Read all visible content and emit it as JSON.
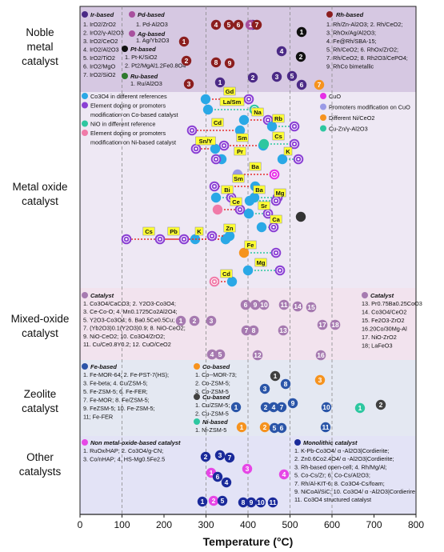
{
  "chart_data": {
    "type": "scatter",
    "xlabel": "Temperature (°C)",
    "xlim": [
      0,
      800
    ],
    "xticks": [
      0,
      100,
      200,
      300,
      400,
      500,
      600,
      700,
      800
    ],
    "grid": "vertical dashed at 100, 300, 400, 500, 600",
    "bands": [
      {
        "name": "noble",
        "label": [
          "Noble",
          "metal",
          "catalyst"
        ],
        "color": "#d6c8e2"
      },
      {
        "name": "metaloxide",
        "label": [
          "Metal oxide",
          "catalyst"
        ],
        "color": "#eee8f4"
      },
      {
        "name": "mixed",
        "label": [
          "Mixed-oxide",
          "catalyst"
        ],
        "color": "#f2e3ee"
      },
      {
        "name": "zeolite",
        "label": [
          "Zeolite",
          "catalyst"
        ],
        "color": "#e4e8f2"
      },
      {
        "name": "other",
        "label": [
          "Other",
          "catalysts"
        ],
        "color": "#e3e3f6"
      }
    ],
    "colors": {
      "ir": "#4b2a86",
      "pd": "#a8509e",
      "pt": "#111111",
      "ru": "#2e7a2e",
      "rh": "#8b1e1e",
      "co3o4": "#2aa8e6",
      "co_dopant": "#8a3fd4",
      "nio": "#2dc7a0",
      "ni_dopant": "#f07aa8",
      "cuo": "#e62ee6",
      "cuo_prom": "#9a9ae6",
      "ni_ceo2": "#f6931e",
      "cuzn": "#2dc7a0",
      "mixed": "#a67ab0",
      "fe": "#2a55a8",
      "co_z": "#f6931e",
      "cu_z": "#404040",
      "ni_z": "#2dc7a0",
      "nonmetal": "#e646e6",
      "mono": "#1a2a9a"
    },
    "legends": {
      "noble_ir_title": "Ir-based",
      "noble_ir": [
        "1. IrO2/ZrO2",
        "2. IrO2/γ-Al2O3",
        "3. IrO2/CeO2",
        "4. IrO2/Al2O3",
        "5. IrO2/TiO2",
        "6. IrO2/MgO",
        "7. IrO2/SiO2"
      ],
      "noble_pd_title": "Pd-based",
      "noble_pd": [
        "1. Pd-Al2O3"
      ],
      "noble_ag_title": "Ag-based",
      "noble_ag": [
        "1. Ag/Yb2O3"
      ],
      "noble_pt_title": "Pt-based",
      "noble_pt": [
        "1. Pt-K/SiO2",
        "2. Pt2/MgAl1.2Fe0.8O4"
      ],
      "noble_ru_title": "Ru-based",
      "noble_ru": [
        "1. Ru/Al2O3"
      ],
      "noble_rh_title": "Rh-based",
      "noble_rh": [
        "1. Rh/Zn-Al2O3;   2. Rh/CeO2;",
        "3. RhOx/Ag/Al2O3;",
        "4. Fe@Rh/SBA-15;",
        "5. Rh/CeO2;   6. RhOx/ZrO2;",
        "7. Rh/CeO2;   8. Rh2O3/CePO4;",
        "9. RhCo bimetallic"
      ],
      "mo_items": [
        "Co3O4 in different references",
        "Element doping or promoters",
        "modification on Co-based catalyst",
        "NiO in different reference",
        "Element doping or promoters",
        "modification on Ni-based catalyst"
      ],
      "mo_right": [
        "CuO",
        "Promoters modification on CuO",
        "Different Ni/CeO2",
        "Cu-Zn/γ-Al2O3"
      ],
      "mixed_title": "Catalyst",
      "mixed_left": [
        "1. Co3O4/CaCO3;  2. Y2O3-Co3O4;",
        "3. Ce-Co-O;  4. Mn0.1725Co2Al2O4;",
        "5. Y2O3-Co3O4;  6. Ba0.5Ce0.5Cu;",
        "7. (Yb2O3)0.1(Y2O3)0.9;  8. NiO-CeO2;",
        "9. NiO-CeO2;  10. Co3O4/ZrO2;",
        "11. Cu/Ce0.8Y0.2;  12. CuO/CeO2"
      ],
      "mixed_right_title": "Catalyst",
      "mixed_right": [
        "13. Pr0.75Ba0.25CoO3",
        "14. Co3O4/CeO2",
        "15. Fe2O3-ZrO2",
        "16.20Co/30Mg-Al",
        "17. NiO-ZrO2",
        "18; LaFeO3"
      ],
      "z_fe_title": "Fe-based",
      "z_fe": [
        "1. Fe-MOR-64;  2. Fe-PST-7(HS);",
        "3. Fe-beta;  4. Cu/ZSM-5;",
        "5. Fe-ZSM-5;  6. Fe-FER;",
        "7. Fe-MOR;  8. Fe/ZSM-5;",
        "9. FeZSM-5;  10. Fe-ZSM-5;",
        "11; Fe-FER"
      ],
      "z_co_title": "Co-based",
      "z_co": [
        "1. Co--MOR-73;",
        "2. Co-ZSM-5;",
        "3. Co-ZSM-5"
      ],
      "z_cu_title": "Cu-based",
      "z_cu": [
        "1. Cu/ZSM-5;",
        "2. Cu-ZSM-5"
      ],
      "z_ni_title": "Ni-based",
      "z_ni": [
        "1. Ni-ZSM-5"
      ],
      "o_nm_title": "Non metal-oxide-based catalyst",
      "o_nm": [
        "1. RuOx/HAP;  2. Co3O4/g-CN;",
        "3. Co/nHAP;   4. HS-Mg0.5Fe2.5"
      ],
      "o_mono_title": "Monolithic catalyst",
      "o_mono": [
        "1. K-Pb-Co3O4/ α -Al2O3|Cordierite;",
        "2. Zn0.6Co2.4O4/ α -Al2O3|Cordierite;",
        "3. Rh-based open-cell;  4. Rh/Mg/Al;",
        "5. Co-Cs/Zr;  6. Co-Cs/Al2O3;",
        "7. Rh/Al-KIT-6;  8. Co3O4-Cs/foam;",
        "9. NiCoAl/SiC;  10. Co3O4/ α -Al2O3|Cordierire",
        "11. Co3O4 structured catalyst"
      ]
    },
    "noble_points": [
      {
        "g": "ir",
        "n": "1",
        "x": 270
      },
      {
        "g": "ir",
        "n": "2",
        "x": 320
      },
      {
        "g": "ir",
        "n": "3",
        "x": 370
      },
      {
        "g": "ir",
        "n": "4",
        "x": 445
      },
      {
        "g": "ir",
        "n": "5",
        "x": 405
      },
      {
        "g": "ir",
        "n": "6",
        "x": 430
      },
      {
        "g": "ir",
        "n": "7",
        "x": 560
      },
      {
        "g": "pd",
        "n": "1",
        "x": 400
      },
      {
        "g": "pt",
        "n": "1",
        "x": 520
      },
      {
        "g": "pt",
        "n": "2",
        "x": 520
      },
      {
        "g": "rh",
        "n": "1",
        "x": 240
      },
      {
        "g": "rh",
        "n": "2",
        "x": 250
      },
      {
        "g": "rh",
        "n": "3",
        "x": 255
      },
      {
        "g": "rh",
        "n": "4",
        "x": 285
      },
      {
        "g": "rh",
        "n": "5",
        "x": 325
      },
      {
        "g": "rh",
        "n": "6",
        "x": 345
      },
      {
        "g": "rh",
        "n": "7",
        "x": 362
      },
      {
        "g": "rh",
        "n": "8",
        "x": 315
      },
      {
        "g": "rh",
        "n": "9",
        "x": 345
      },
      {
        "g": "ni_ceo2",
        "n": "7",
        "x": 595
      }
    ],
    "metal_oxide_points": [
      {
        "from": 490,
        "to": 400,
        "tag": "Gd"
      },
      {
        "from": 410,
        "to": 410,
        "tag": "La/Sm"
      },
      {
        "from": 480,
        "to": 400,
        "tag": "Na"
      },
      {
        "from": 360,
        "to": 260,
        "tag": "Cd"
      },
      {
        "from": 500,
        "to": 520,
        "tag": "Rb"
      },
      {
        "from": 410,
        "to": 330,
        "tag": "Sm"
      },
      {
        "from": 320,
        "to": 250,
        "tag": "Sn/Y"
      },
      {
        "from": 470,
        "to": 560,
        "tag": "Cs"
      },
      {
        "from": 390,
        "to": 380,
        "tag": "Pr"
      },
      {
        "from": 530,
        "to": 520,
        "tag": "K"
      },
      {
        "from": 405,
        "to": 390,
        "tag": "Ba"
      },
      {
        "from": 420,
        "to": 320,
        "tag": "Sm"
      },
      {
        "from": 300,
        "to": 310,
        "tag": "Bi"
      },
      {
        "from": 380,
        "to": 410,
        "tag": "Ba"
      },
      {
        "from": 420,
        "to": 470,
        "tag": "Mg"
      },
      {
        "from": 370,
        "to": 380,
        "tag": "Ce"
      },
      {
        "from": 430,
        "to": 460,
        "tag": "Sr"
      },
      {
        "from": 440,
        "to": 460,
        "tag": "Ca"
      },
      {
        "from": 330,
        "to": 150,
        "tag": "Cs"
      },
      {
        "from": 310,
        "to": 150,
        "tag": "Pb"
      },
      {
        "from": 280,
        "to": 150,
        "tag": "K"
      },
      {
        "from": 340,
        "to": 280,
        "tag": "Zn"
      },
      {
        "from": 380,
        "to": 460,
        "tag": "Fe"
      },
      {
        "from": 400,
        "to": 460,
        "tag": "Mg"
      },
      {
        "from": 330,
        "to": 320,
        "tag": "Cd"
      }
    ],
    "mixed_points": [
      {
        "n": "1",
        "x": 205
      },
      {
        "n": "2",
        "x": 240
      },
      {
        "n": "3",
        "x": 280
      },
      {
        "n": "4",
        "x": 300
      },
      {
        "n": "5",
        "x": 320
      },
      {
        "n": "6",
        "x": 345
      },
      {
        "n": "7",
        "x": 362
      },
      {
        "n": "8",
        "x": 380
      },
      {
        "n": "9",
        "x": 400
      },
      {
        "n": "10",
        "x": 420
      },
      {
        "n": "11",
        "x": 470
      },
      {
        "n": "12",
        "x": 415
      },
      {
        "n": "13",
        "x": 418
      },
      {
        "n": "14",
        "x": 452
      },
      {
        "n": "15",
        "x": 485
      },
      {
        "n": "16",
        "x": 570
      },
      {
        "n": "17",
        "x": 603
      },
      {
        "n": "18",
        "x": 625
      }
    ],
    "zeolite_points": [
      {
        "g": "fe",
        "n": "1",
        "x": 370
      },
      {
        "g": "fe",
        "n": "2",
        "x": 430
      },
      {
        "g": "fe",
        "n": "3",
        "x": 435
      },
      {
        "g": "fe",
        "n": "4",
        "x": 465
      },
      {
        "g": "fe",
        "n": "5",
        "x": 465
      },
      {
        "g": "fe",
        "n": "6",
        "x": 485
      },
      {
        "g": "fe",
        "n": "7",
        "x": 485
      },
      {
        "g": "fe",
        "n": "8",
        "x": 485
      },
      {
        "g": "fe",
        "n": "9",
        "x": 505
      },
      {
        "g": "fe",
        "n": "10",
        "x": 580
      },
      {
        "g": "fe",
        "n": "11",
        "x": 580
      },
      {
        "g": "co_z",
        "n": "1",
        "x": 380
      },
      {
        "g": "co_z",
        "n": "2",
        "x": 440
      },
      {
        "g": "co_z",
        "n": "3",
        "x": 570
      },
      {
        "g": "cu_z",
        "n": "1",
        "x": 455
      },
      {
        "g": "cu_z",
        "n": "2",
        "x": 715
      },
      {
        "g": "ni_z",
        "n": "1",
        "x": 660
      }
    ],
    "other_points": [
      {
        "g": "nonmetal",
        "n": "1",
        "x": 300
      },
      {
        "g": "nonmetal",
        "n": "2",
        "x": 290
      },
      {
        "g": "nonmetal",
        "n": "3",
        "x": 395
      },
      {
        "g": "nonmetal",
        "n": "4",
        "x": 480
      },
      {
        "g": "mono",
        "n": "1",
        "x": 285
      },
      {
        "g": "mono",
        "n": "2",
        "x": 285
      },
      {
        "g": "mono",
        "n": "3",
        "x": 330
      },
      {
        "g": "mono",
        "n": "4",
        "x": 320
      },
      {
        "g": "mono",
        "n": "5",
        "x": 340
      },
      {
        "g": "mono",
        "n": "6",
        "x": 350
      },
      {
        "g": "mono",
        "n": "7",
        "x": 365
      },
      {
        "g": "mono",
        "n": "8",
        "x": 400
      },
      {
        "g": "mono",
        "n": "9",
        "x": 420
      },
      {
        "g": "mono",
        "n": "10",
        "x": 440
      },
      {
        "g": "mono",
        "n": "11",
        "x": 500
      }
    ]
  }
}
